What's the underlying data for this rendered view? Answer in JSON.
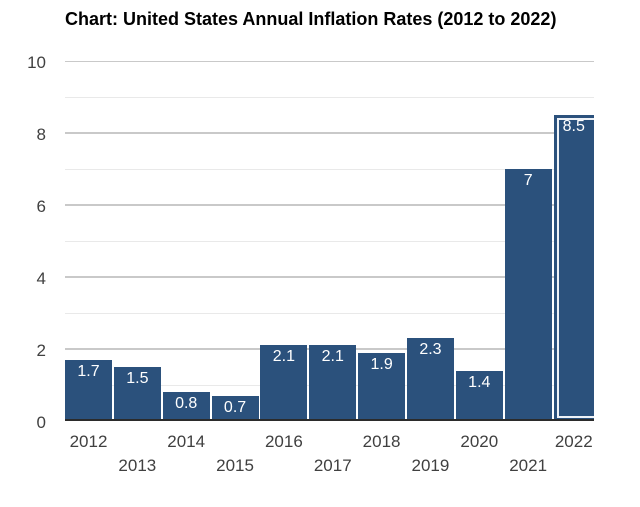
{
  "page": {
    "background": "#ffffff"
  },
  "chart_data": {
    "type": "bar",
    "title": "Chart: United States Annual Inflation Rates (2012 to 2022)",
    "categories": [
      "2012",
      "2013",
      "2014",
      "2015",
      "2016",
      "2017",
      "2018",
      "2019",
      "2020",
      "2021",
      "2022"
    ],
    "values": [
      1.7,
      1.5,
      0.8,
      0.7,
      2.1,
      2.1,
      1.9,
      2.3,
      1.4,
      7,
      8.5
    ],
    "bar_labels": [
      "1.7",
      "1.5",
      "0.8",
      "0.7",
      "2.1",
      "2.1",
      "1.9",
      "2.3",
      "1.4",
      "7",
      "8.5"
    ],
    "xlabel": "",
    "ylabel": "",
    "ylim": [
      0,
      10
    ],
    "yticks": [
      0,
      2,
      4,
      6,
      8,
      10
    ],
    "minor_gridlines": [
      1,
      3,
      5,
      7,
      9
    ],
    "grid": "horizontal",
    "legend": "none",
    "highlighted_category": "2022",
    "colors": {
      "bar": "#2b517c",
      "bar_label_text": "#ffffff",
      "highlight_border": "#eef2f7",
      "major_grid": "#c9c9c9",
      "minor_grid": "#e9e9e9",
      "baseline": "#2b2b2b",
      "axis_text": "#404040",
      "title_text": "#000000"
    }
  }
}
